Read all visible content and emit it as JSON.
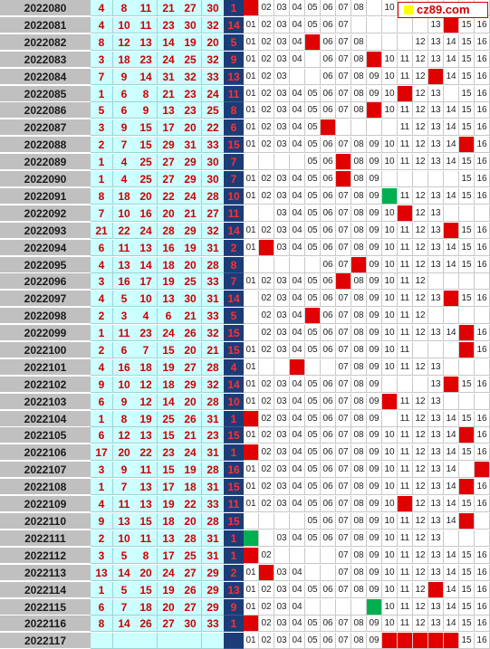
{
  "chart_data": {
    "type": "table",
    "rows": [
      {
        "issue": "2022080",
        "balls": [
          4,
          8,
          11,
          21,
          27,
          30
        ],
        "blue": 1,
        "trend": [
          1,
          2,
          3,
          4,
          5,
          6,
          7,
          8,
          0,
          10,
          0,
          0,
          0,
          0,
          0,
          0
        ]
      },
      {
        "issue": "2022081",
        "balls": [
          4,
          10,
          11,
          23,
          30,
          32
        ],
        "blue": 14,
        "trend": [
          1,
          2,
          3,
          4,
          5,
          6,
          7,
          0,
          0,
          0,
          0,
          0,
          13,
          14,
          15,
          16
        ]
      },
      {
        "issue": "2022082",
        "balls": [
          8,
          12,
          13,
          14,
          19,
          20
        ],
        "blue": 5,
        "trend": [
          1,
          2,
          3,
          4,
          5,
          6,
          7,
          8,
          0,
          0,
          0,
          12,
          13,
          14,
          15,
          16
        ]
      },
      {
        "issue": "2022083",
        "balls": [
          3,
          18,
          23,
          24,
          25,
          32
        ],
        "blue": 9,
        "trend": [
          1,
          2,
          3,
          4,
          0,
          6,
          7,
          8,
          9,
          10,
          11,
          12,
          13,
          14,
          15,
          16
        ]
      },
      {
        "issue": "2022084",
        "balls": [
          7,
          9,
          14,
          31,
          32,
          33
        ],
        "blue": 13,
        "trend": [
          1,
          2,
          3,
          0,
          0,
          6,
          7,
          8,
          9,
          10,
          11,
          12,
          13,
          14,
          15,
          16
        ]
      },
      {
        "issue": "2022085",
        "balls": [
          1,
          6,
          8,
          21,
          23,
          24
        ],
        "blue": 11,
        "trend": [
          1,
          2,
          3,
          4,
          5,
          6,
          7,
          8,
          9,
          10,
          11,
          12,
          13,
          0,
          15,
          16
        ]
      },
      {
        "issue": "2022086",
        "balls": [
          5,
          6,
          9,
          13,
          23,
          25
        ],
        "blue": 8,
        "trend": [
          1,
          2,
          3,
          4,
          5,
          6,
          7,
          8,
          9,
          10,
          11,
          12,
          13,
          14,
          15,
          16
        ]
      },
      {
        "issue": "2022087",
        "balls": [
          3,
          9,
          15,
          17,
          20,
          22
        ],
        "blue": 6,
        "trend": [
          1,
          2,
          3,
          4,
          5,
          6,
          0,
          0,
          0,
          0,
          11,
          12,
          13,
          14,
          15,
          16
        ]
      },
      {
        "issue": "2022088",
        "balls": [
          2,
          7,
          15,
          29,
          31,
          33
        ],
        "blue": 15,
        "trend": [
          1,
          2,
          3,
          4,
          5,
          6,
          7,
          8,
          9,
          10,
          11,
          12,
          13,
          14,
          15,
          16
        ]
      },
      {
        "issue": "2022089",
        "balls": [
          1,
          4,
          25,
          27,
          29,
          30
        ],
        "blue": 7,
        "trend": [
          0,
          0,
          0,
          0,
          5,
          6,
          7,
          8,
          9,
          10,
          11,
          12,
          13,
          14,
          15,
          16
        ]
      },
      {
        "issue": "2022090",
        "balls": [
          1,
          4,
          25,
          27,
          29,
          30
        ],
        "blue": 7,
        "trend": [
          1,
          2,
          3,
          4,
          5,
          6,
          7,
          8,
          9,
          0,
          0,
          0,
          0,
          0,
          15,
          16
        ]
      },
      {
        "issue": "2022091",
        "balls": [
          8,
          18,
          20,
          22,
          24,
          28
        ],
        "blue": 10,
        "trend": [
          1,
          2,
          3,
          4,
          5,
          6,
          7,
          8,
          9,
          10,
          11,
          12,
          13,
          14,
          15,
          16
        ]
      },
      {
        "issue": "2022092",
        "balls": [
          7,
          10,
          16,
          20,
          21,
          27
        ],
        "blue": 11,
        "trend": [
          0,
          0,
          3,
          4,
          5,
          6,
          7,
          8,
          9,
          10,
          11,
          12,
          13,
          0,
          0,
          0
        ]
      },
      {
        "issue": "2022093",
        "balls": [
          21,
          22,
          24,
          28,
          29,
          32
        ],
        "blue": 14,
        "trend": [
          1,
          2,
          3,
          4,
          5,
          6,
          7,
          8,
          9,
          10,
          11,
          12,
          13,
          14,
          15,
          16
        ]
      },
      {
        "issue": "2022094",
        "balls": [
          6,
          11,
          13,
          16,
          19,
          31
        ],
        "blue": 2,
        "trend": [
          1,
          2,
          3,
          4,
          5,
          6,
          7,
          8,
          9,
          10,
          11,
          12,
          13,
          14,
          15,
          16
        ]
      },
      {
        "issue": "2022095",
        "balls": [
          4,
          13,
          14,
          18,
          20,
          28
        ],
        "blue": 8,
        "trend": [
          0,
          0,
          0,
          0,
          0,
          6,
          7,
          8,
          9,
          10,
          11,
          12,
          13,
          14,
          15,
          16
        ]
      },
      {
        "issue": "2022096",
        "balls": [
          3,
          16,
          17,
          19,
          25,
          33
        ],
        "blue": 7,
        "trend": [
          1,
          2,
          3,
          4,
          5,
          6,
          7,
          8,
          9,
          10,
          11,
          12,
          0,
          0,
          0,
          0
        ]
      },
      {
        "issue": "2022097",
        "balls": [
          4,
          5,
          10,
          13,
          30,
          31
        ],
        "blue": 14,
        "trend": [
          0,
          2,
          3,
          4,
          5,
          6,
          7,
          8,
          9,
          10,
          11,
          12,
          13,
          14,
          15,
          16
        ]
      },
      {
        "issue": "2022098",
        "balls": [
          2,
          3,
          4,
          6,
          21,
          33
        ],
        "blue": 5,
        "trend": [
          0,
          2,
          3,
          4,
          5,
          6,
          7,
          8,
          9,
          10,
          11,
          12,
          0,
          0,
          0,
          0
        ]
      },
      {
        "issue": "2022099",
        "balls": [
          1,
          11,
          23,
          24,
          26,
          32
        ],
        "blue": 15,
        "trend": [
          0,
          2,
          3,
          4,
          5,
          6,
          7,
          8,
          9,
          10,
          11,
          12,
          13,
          14,
          15,
          16
        ]
      },
      {
        "issue": "2022100",
        "balls": [
          2,
          6,
          7,
          15,
          20,
          21
        ],
        "blue": 15,
        "trend": [
          1,
          2,
          3,
          4,
          5,
          6,
          7,
          8,
          9,
          10,
          11,
          0,
          0,
          0,
          15,
          16
        ]
      },
      {
        "issue": "2022101",
        "balls": [
          4,
          16,
          18,
          19,
          27,
          28
        ],
        "blue": 4,
        "trend": [
          1,
          0,
          0,
          0,
          0,
          0,
          7,
          8,
          9,
          10,
          11,
          12,
          13,
          0,
          0,
          0
        ]
      },
      {
        "issue": "2022102",
        "balls": [
          9,
          10,
          12,
          18,
          29,
          32
        ],
        "blue": 14,
        "trend": [
          1,
          2,
          3,
          4,
          5,
          6,
          7,
          8,
          9,
          0,
          0,
          0,
          13,
          14,
          15,
          16
        ]
      },
      {
        "issue": "2022103",
        "balls": [
          6,
          9,
          12,
          14,
          20,
          28
        ],
        "blue": 10,
        "trend": [
          1,
          2,
          3,
          4,
          5,
          6,
          7,
          8,
          9,
          10,
          11,
          12,
          13,
          0,
          0,
          0
        ]
      },
      {
        "issue": "2022104",
        "balls": [
          1,
          8,
          19,
          25,
          26,
          31
        ],
        "blue": 1,
        "trend": [
          1,
          2,
          3,
          4,
          5,
          6,
          7,
          8,
          9,
          0,
          11,
          12,
          13,
          14,
          15,
          16
        ]
      },
      {
        "issue": "2022105",
        "balls": [
          6,
          12,
          13,
          15,
          21,
          23
        ],
        "blue": 15,
        "trend": [
          1,
          2,
          3,
          4,
          5,
          6,
          7,
          8,
          9,
          10,
          11,
          12,
          13,
          14,
          15,
          16
        ]
      },
      {
        "issue": "2022106",
        "balls": [
          17,
          20,
          22,
          23,
          24,
          31
        ],
        "blue": 1,
        "trend": [
          1,
          2,
          3,
          4,
          5,
          6,
          7,
          8,
          9,
          10,
          11,
          12,
          13,
          14,
          15,
          16
        ]
      },
      {
        "issue": "2022107",
        "balls": [
          3,
          9,
          11,
          15,
          19,
          28
        ],
        "blue": 16,
        "trend": [
          1,
          2,
          3,
          4,
          5,
          6,
          7,
          8,
          9,
          10,
          11,
          12,
          13,
          14,
          0,
          16
        ]
      },
      {
        "issue": "2022108",
        "balls": [
          1,
          7,
          13,
          17,
          18,
          31
        ],
        "blue": 15,
        "trend": [
          1,
          2,
          3,
          4,
          5,
          6,
          7,
          8,
          9,
          10,
          11,
          12,
          13,
          14,
          15,
          16
        ]
      },
      {
        "issue": "2022109",
        "balls": [
          4,
          11,
          13,
          19,
          22,
          33
        ],
        "blue": 11,
        "trend": [
          1,
          2,
          3,
          4,
          5,
          6,
          7,
          8,
          9,
          10,
          11,
          12,
          13,
          14,
          15,
          16
        ]
      },
      {
        "issue": "2022110",
        "balls": [
          9,
          13,
          15,
          18,
          20,
          28
        ],
        "blue": 15,
        "trend": [
          0,
          0,
          0,
          0,
          5,
          6,
          7,
          8,
          9,
          10,
          11,
          12,
          13,
          14,
          15,
          0
        ]
      },
      {
        "issue": "2022111",
        "balls": [
          2,
          10,
          11,
          13,
          28,
          31
        ],
        "blue": 1,
        "trend": [
          1,
          0,
          3,
          4,
          5,
          6,
          7,
          8,
          9,
          10,
          11,
          12,
          13,
          0,
          0,
          0
        ]
      },
      {
        "issue": "2022112",
        "balls": [
          3,
          5,
          8,
          17,
          25,
          31
        ],
        "blue": 1,
        "trend": [
          1,
          2,
          0,
          0,
          0,
          0,
          7,
          8,
          9,
          10,
          11,
          12,
          13,
          14,
          15,
          16
        ]
      },
      {
        "issue": "2022113",
        "balls": [
          13,
          14,
          20,
          24,
          27,
          29
        ],
        "blue": 2,
        "trend": [
          1,
          2,
          3,
          4,
          0,
          0,
          7,
          8,
          9,
          10,
          11,
          12,
          13,
          14,
          15,
          16
        ]
      },
      {
        "issue": "2022114",
        "balls": [
          1,
          5,
          15,
          19,
          26,
          29
        ],
        "blue": 13,
        "trend": [
          1,
          2,
          3,
          4,
          5,
          6,
          7,
          8,
          9,
          10,
          11,
          12,
          13,
          14,
          15,
          16
        ]
      },
      {
        "issue": "2022115",
        "balls": [
          6,
          7,
          18,
          20,
          27,
          29
        ],
        "blue": 9,
        "trend": [
          1,
          2,
          3,
          4,
          0,
          0,
          0,
          0,
          9,
          10,
          11,
          12,
          13,
          14,
          15,
          16
        ]
      },
      {
        "issue": "2022116",
        "balls": [
          8,
          14,
          26,
          27,
          30,
          33
        ],
        "blue": 1,
        "trend": [
          1,
          2,
          3,
          4,
          5,
          6,
          7,
          8,
          9,
          10,
          11,
          12,
          13,
          14,
          15,
          16
        ]
      },
      {
        "issue": "2022117",
        "balls": [],
        "blue": null,
        "trend": [
          1,
          2,
          3,
          4,
          5,
          6,
          7,
          8,
          9,
          0,
          0,
          0,
          0,
          0,
          15,
          16
        ]
      }
    ],
    "hits_red": [
      [
        0,
        0
      ],
      [
        1,
        13
      ],
      [
        2,
        4
      ],
      [
        3,
        8
      ],
      [
        4,
        12
      ],
      [
        5,
        10
      ],
      [
        6,
        8
      ],
      [
        7,
        5
      ],
      [
        8,
        14
      ],
      [
        9,
        6
      ],
      [
        10,
        6
      ],
      [
        12,
        10
      ],
      [
        13,
        13
      ],
      [
        14,
        1
      ],
      [
        15,
        7
      ],
      [
        16,
        6
      ],
      [
        17,
        13
      ],
      [
        18,
        4
      ],
      [
        19,
        14
      ],
      [
        20,
        14
      ],
      [
        21,
        3
      ],
      [
        22,
        13
      ],
      [
        23,
        9
      ],
      [
        24,
        0
      ],
      [
        25,
        14
      ],
      [
        26,
        0
      ],
      [
        27,
        15
      ],
      [
        28,
        14
      ],
      [
        29,
        10
      ],
      [
        30,
        14
      ],
      [
        31,
        0
      ],
      [
        32,
        0
      ],
      [
        33,
        1
      ],
      [
        34,
        12
      ],
      [
        36,
        0
      ],
      [
        37,
        9
      ],
      [
        37,
        10
      ],
      [
        37,
        11
      ],
      [
        37,
        12
      ],
      [
        37,
        13
      ]
    ],
    "hits_green": [
      [
        11,
        9
      ],
      [
        31,
        0
      ],
      [
        35,
        8
      ]
    ]
  },
  "logo": {
    "text": "cz89.com"
  }
}
